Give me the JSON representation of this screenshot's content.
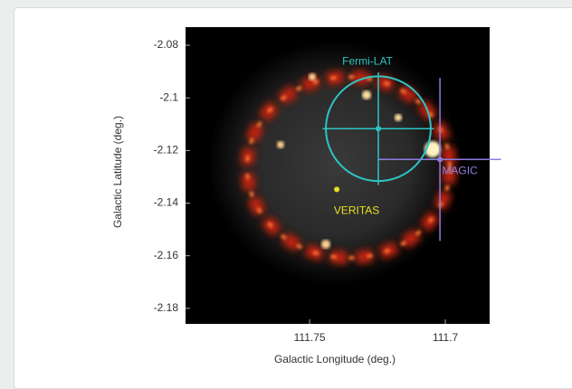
{
  "chart_data": {
    "type": "image",
    "xlabel": "Galactic Longitude (deg.)",
    "ylabel": "Galactic Latitude (deg.)",
    "xlim": [
      111.7957,
      111.6837
    ],
    "ylim": [
      -2.1859,
      -2.0731
    ],
    "xticks": [
      111.75,
      111.7
    ],
    "yticks": [
      -2.08,
      -2.1,
      -2.12,
      -2.14,
      -2.16,
      -2.18
    ],
    "sources": [
      {
        "name": "Fermi-LAT",
        "color": "#2ec4c4",
        "x": 111.7247,
        "y": -2.1117,
        "radius": 0.0193,
        "xerr": 0.0205,
        "yerr": 0.0214
      },
      {
        "name": "MAGIC",
        "color": "#8a7fe0",
        "x": 111.702,
        "y": -2.1234,
        "xerr": 0.0225,
        "yerr": 0.031
      },
      {
        "name": "VERITAS",
        "color": "#e8e020",
        "x": 111.74,
        "y": -2.1348
      }
    ]
  }
}
